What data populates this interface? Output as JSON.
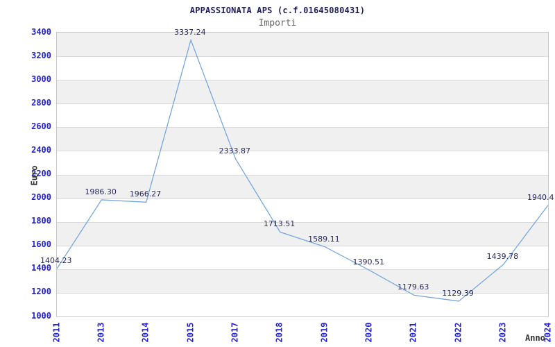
{
  "chart_data": {
    "type": "line",
    "title": "APPASSIONATA APS (c.f.01645080431)",
    "subtitle": "Importi",
    "xlabel": "Anno",
    "ylabel": "Euro",
    "categories": [
      "2011",
      "2013",
      "2014",
      "2015",
      "2017",
      "2018",
      "2019",
      "2020",
      "2021",
      "2022",
      "2023",
      "2024"
    ],
    "values": [
      1404.23,
      1986.3,
      1966.27,
      3337.24,
      2333.87,
      1713.51,
      1589.11,
      1390.51,
      1179.63,
      1129.39,
      1439.78,
      1940.4
    ],
    "point_labels": [
      "1404.23",
      "1986.30",
      "1966.27",
      "3337.24",
      "2333.87",
      "1713.51",
      "1589.11",
      "1390.51",
      "1179.63",
      "1129.39",
      "1439.78",
      "1940.4"
    ],
    "ylim": [
      1000,
      3400
    ],
    "ytick_step": 200,
    "ytick_labels": [
      "1000",
      "1200",
      "1400",
      "1600",
      "1800",
      "2000",
      "2200",
      "2400",
      "2600",
      "2800",
      "3000",
      "3200",
      "3400"
    ],
    "grid": true,
    "legend": "none",
    "banded_background": true,
    "colors": {
      "line": "#74a7dd",
      "band": "#f0f0f0",
      "gridline": "#d9d9d9",
      "plot_border": "#c8c8c8",
      "tick_label": "#2323cc",
      "title": "#20205c",
      "subtitle": "#666666",
      "point_label": "#26265a",
      "axis_title": "#333333",
      "background": "#ffffff"
    }
  }
}
